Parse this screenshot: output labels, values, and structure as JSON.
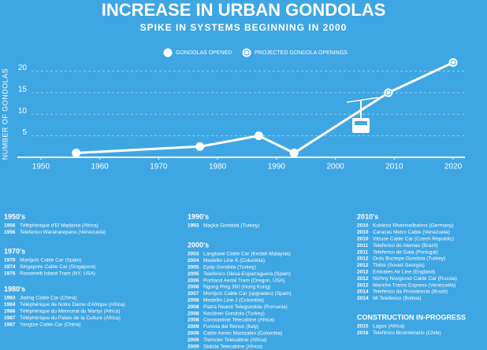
{
  "chart_data": {
    "type": "line",
    "title": "INCREASE IN URBAN GONDOLAS",
    "subtitle": "SPIKE IN SYSTEMS BEGINNING IN 2000",
    "y_label": "NUMBER OF GONDOLAS",
    "x": [
      1956,
      1977,
      1987,
      1993,
      2009,
      2020
    ],
    "series": [
      {
        "name": "GONDOLAS OPENED",
        "color": "#ffffff",
        "values": [
          1,
          2.5,
          5,
          1,
          null,
          null
        ]
      },
      {
        "name": "PROJECTED GONDOLA OPENINGS",
        "color": "#ffffff",
        "values": [
          null,
          null,
          null,
          1,
          15,
          22
        ]
      }
    ],
    "xlim": [
      1946,
      2022
    ],
    "xticks": [
      1950,
      1960,
      1970,
      1980,
      1990,
      2000,
      2010,
      2020
    ],
    "ylim": [
      0,
      23
    ],
    "yticks": [
      5,
      10,
      15,
      20
    ],
    "grid": true,
    "legend": "top"
  },
  "lists": [
    {
      "heading": "1950's",
      "items": [
        {
          "year": 1956,
          "name": "Téléphérique d'El Madania (Africa)"
        },
        {
          "year": 1956,
          "name": "Teleferico Warairarepano (Venezuela)"
        }
      ]
    },
    {
      "heading": "1970's",
      "items": [
        {
          "year": 1970,
          "name": "Montjuïc Cable Car (Spain)"
        },
        {
          "year": 1974,
          "name": "Singapore Cable Car (Singapore)"
        },
        {
          "year": 1976,
          "name": "Roosevelt Island Tram (NY, USA)"
        }
      ]
    },
    {
      "heading": "1980's",
      "items": [
        {
          "year": 1983,
          "name": "Jialing Cable Car (China)"
        },
        {
          "year": 1984,
          "name": "Téléphérique de Notre Dame d'Afrique (Africa)"
        },
        {
          "year": 1986,
          "name": "Téléphérique du Memorial du Martyr (Africa)"
        },
        {
          "year": 1987,
          "name": "Téléphérique du Palais de la Culture (Africa)"
        },
        {
          "year": 1987,
          "name": "Yangtze Cable Car (China)"
        }
      ]
    },
    {
      "heading": "1990's",
      "items": [
        {
          "year": 1993,
          "name": "Maçka Gondola (Turkey)"
        }
      ]
    },
    {
      "heading": "2000's",
      "items": [
        {
          "year": 2003,
          "name": "Langkawi Cable Car (Kedah Malaysia)"
        },
        {
          "year": 2004,
          "name": "Medellin Line K (Columbia)"
        },
        {
          "year": 2005,
          "name": "Eyüp Gondola (Turkey)"
        },
        {
          "year": 2005,
          "name": "Teleférico Olesa-Esparraguera (Spain)"
        },
        {
          "year": 2006,
          "name": "Portland Aerial Tram (Oregon, USA)"
        },
        {
          "year": 2006,
          "name": "Ngong Ping 360 (Hong Kong)"
        },
        {
          "year": 2007,
          "name": "Montjuïc Cable Car (upgrades) (Spain)"
        },
        {
          "year": 2008,
          "name": "Medellin Line J (Colombia)"
        },
        {
          "year": 2008,
          "name": "Piatra Neamt Telegondola (Romania)"
        },
        {
          "year": 2008,
          "name": "Keciören Gondola (Turkey)"
        },
        {
          "year": 2008,
          "name": "Constantine Telecabine (Africa)"
        },
        {
          "year": 2009,
          "name": "Funivia del Renon (Italy)"
        },
        {
          "year": 2009,
          "name": "Cable Aereo Manizales (Colombia)"
        },
        {
          "year": 2009,
          "name": "Tlemcen Telecabine (Africa)"
        },
        {
          "year": 2009,
          "name": "Skikda Telecabine (Africa)"
        }
      ]
    },
    {
      "heading": "2010's",
      "items": [
        {
          "year": 2010,
          "name": "Koblenz Rheinseilbahns (Germany)"
        },
        {
          "year": 2010,
          "name": "Caracas Metro Cable (Venezuela)"
        },
        {
          "year": 2010,
          "name": "Vitruse Cable Car (Czech Republic)"
        },
        {
          "year": 2011,
          "name": "Teleferico do Alemao (Brazil)"
        },
        {
          "year": 2011,
          "name": "Teleferico de Gaia (Portugal)"
        },
        {
          "year": 2012,
          "name": "Ordu Boztepe Gondola (Turkey)"
        },
        {
          "year": 2012,
          "name": "Tbilisi (Soviet Georgia)"
        },
        {
          "year": 2012,
          "name": "Emirates Air Line (England)"
        },
        {
          "year": 2012,
          "name": "Nizhny Novgorod Cable Car (Russia)"
        },
        {
          "year": 2012,
          "name": "Mariche Tramo Express (Venezuela)"
        },
        {
          "year": 2014,
          "name": "Teleférico da Providencia (Brazil)"
        },
        {
          "year": 2014,
          "name": "Mi Teleferico (Bolivia)"
        }
      ]
    },
    {
      "heading": "CONSTRUCTION IN-PROGRESS",
      "items": [
        {
          "year": 2015,
          "name": "Lagos (Africa)"
        },
        {
          "year": 2016,
          "name": "Teleférico Bicentenario (Chile)"
        }
      ]
    }
  ]
}
